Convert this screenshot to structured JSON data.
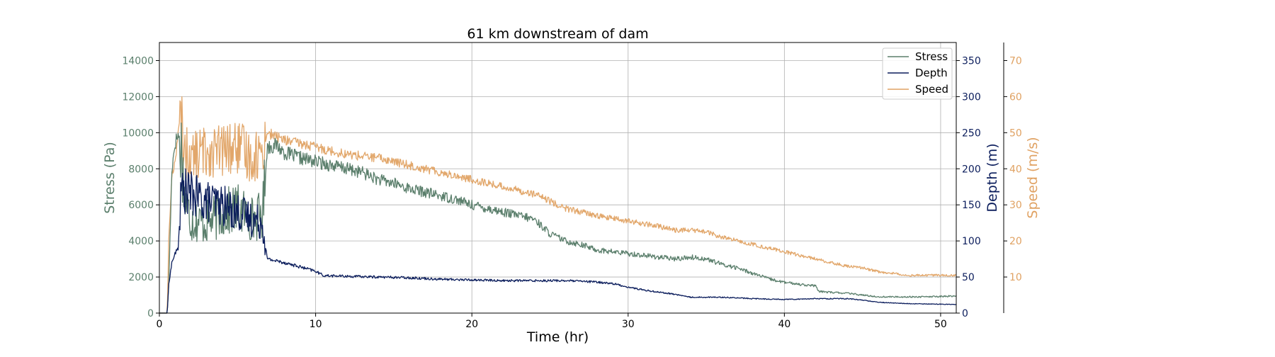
{
  "chart_data": {
    "type": "line",
    "title": "61 km downstream of dam",
    "xlabel": "Time (hr)",
    "xlim": [
      0,
      51
    ],
    "xticks": [
      0,
      10,
      20,
      30,
      40,
      50
    ],
    "grid": true,
    "legend_position": "top-right",
    "axes": {
      "stress": {
        "label": "Stress (Pa)",
        "color": "#5b7f6c",
        "side": "left",
        "ylim": [
          0,
          15000
        ],
        "ticks": [
          0,
          2000,
          4000,
          6000,
          8000,
          10000,
          12000,
          14000
        ]
      },
      "depth": {
        "label": "Depth (m)",
        "color": "#0b1d5c",
        "side": "right",
        "ylim": [
          0,
          375
        ],
        "ticks": [
          0,
          50,
          100,
          150,
          200,
          250,
          300,
          350
        ]
      },
      "speed": {
        "label": "Speed (m/s)",
        "color": "#e0a263",
        "side": "right-offset",
        "ylim": [
          0,
          75
        ],
        "ticks": [
          10,
          20,
          30,
          40,
          50,
          60,
          70
        ]
      }
    },
    "series": [
      {
        "name": "Stress",
        "axis": "stress",
        "color": "#5b7f6c",
        "noise": 0.045,
        "x": [
          0,
          0.5,
          0.6,
          0.8,
          1.0,
          1.2,
          1.4,
          1.6,
          2,
          3,
          4,
          5,
          6,
          6.6,
          6.9,
          7.5,
          8,
          9,
          10,
          11,
          12,
          13,
          14,
          15,
          16,
          17,
          18,
          19,
          20,
          21,
          22,
          23,
          24,
          25,
          26,
          27,
          28,
          29,
          30,
          31,
          32,
          33,
          34,
          35,
          36,
          37,
          38,
          39,
          40,
          41,
          42,
          42.2,
          43,
          44,
          45,
          46,
          47,
          48,
          49,
          50,
          51
        ],
        "y": [
          0,
          0,
          1500,
          8000,
          9400,
          9900,
          9200,
          6500,
          5200,
          5000,
          5500,
          5800,
          5200,
          5500,
          9200,
          9300,
          8900,
          8600,
          8400,
          8200,
          8000,
          7800,
          7400,
          7200,
          6900,
          6700,
          6500,
          6300,
          6000,
          5800,
          5600,
          5400,
          5200,
          4400,
          4000,
          3800,
          3500,
          3400,
          3300,
          3200,
          3100,
          3000,
          3100,
          3000,
          2700,
          2500,
          2200,
          1900,
          1700,
          1600,
          1500,
          1200,
          1150,
          1100,
          1000,
          900,
          900,
          900,
          900,
          920,
          950
        ]
      },
      {
        "name": "Depth",
        "axis": "depth",
        "color": "#0b1d5c",
        "noise": 0.035,
        "x": [
          0,
          0.5,
          0.6,
          0.8,
          1.0,
          1.2,
          1.4,
          1.6,
          2,
          3,
          4,
          5,
          6,
          6.6,
          6.9,
          8,
          10,
          10.5,
          12,
          14,
          16,
          18,
          20,
          22,
          24,
          26,
          28,
          29,
          30,
          31,
          32,
          33,
          34,
          36,
          38,
          40,
          42,
          44,
          45,
          46,
          48,
          51
        ],
        "y": [
          0,
          0,
          40,
          70,
          82,
          90,
          170,
          170,
          165,
          155,
          150,
          140,
          130,
          125,
          75,
          70,
          58,
          52,
          51,
          50,
          49,
          47,
          46,
          45,
          45,
          45,
          43,
          41,
          36,
          32,
          29,
          26,
          22,
          22,
          20,
          19,
          20,
          20,
          18,
          15,
          13,
          12
        ]
      },
      {
        "name": "Speed",
        "axis": "speed",
        "color": "#e0a263",
        "noise": 0.03,
        "x": [
          0,
          0.5,
          0.6,
          0.8,
          1.0,
          1.2,
          1.4,
          1.6,
          2,
          3,
          4,
          5,
          6,
          6.6,
          6.9,
          8,
          10,
          12,
          14,
          16,
          18,
          20,
          22,
          24,
          25,
          26,
          27,
          28,
          30,
          32,
          33,
          34,
          35,
          36,
          38,
          40,
          42,
          44,
          45,
          46,
          48,
          51
        ],
        "y": [
          0,
          0,
          20,
          38,
          42,
          50,
          54,
          45,
          43,
          45,
          45,
          46,
          43,
          45,
          50,
          48,
          46,
          44,
          43,
          41,
          39,
          37,
          35,
          33,
          31,
          29,
          28,
          27,
          25.5,
          24,
          23,
          23,
          22.5,
          21,
          19,
          17,
          15,
          13,
          12.5,
          11.5,
          10.5,
          10.5
        ]
      }
    ]
  }
}
